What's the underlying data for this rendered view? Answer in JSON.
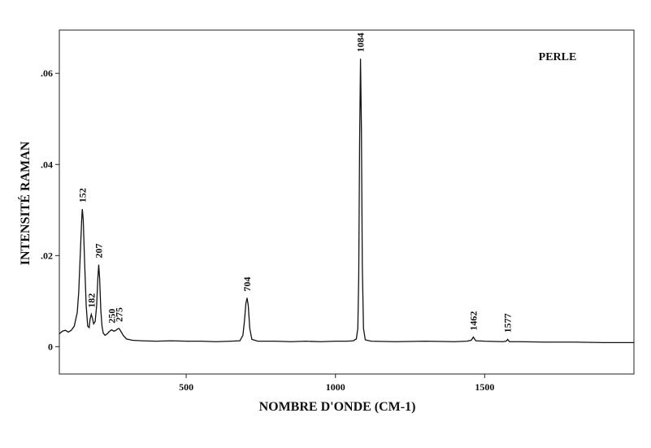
{
  "chart_data": {
    "type": "line",
    "x_label": "NOMBRE D'ONDE (CM-1)",
    "y_label": "INTENSITÉ RAMAN",
    "x": [
      75,
      85,
      95,
      105,
      115,
      125,
      135,
      140,
      145,
      150,
      152,
      155,
      160,
      165,
      170,
      175,
      178,
      182,
      186,
      190,
      195,
      200,
      204,
      207,
      210,
      214,
      218,
      222,
      228,
      235,
      242,
      250,
      258,
      265,
      270,
      275,
      280,
      290,
      300,
      320,
      350,
      400,
      450,
      500,
      550,
      600,
      650,
      680,
      690,
      695,
      700,
      704,
      708,
      713,
      720,
      740,
      800,
      850,
      900,
      950,
      1000,
      1040,
      1060,
      1070,
      1075,
      1078,
      1081,
      1084,
      1087,
      1090,
      1094,
      1100,
      1120,
      1200,
      1300,
      1400,
      1440,
      1455,
      1462,
      1470,
      1500,
      1560,
      1572,
      1577,
      1583,
      1620,
      1700,
      1800,
      1900,
      2000
    ],
    "series": [
      {
        "name": "PERLE",
        "color": "#111111",
        "values": [
          0.0028,
          0.0034,
          0.0036,
          0.0032,
          0.0036,
          0.0045,
          0.0075,
          0.012,
          0.02,
          0.028,
          0.0302,
          0.028,
          0.018,
          0.009,
          0.0045,
          0.0042,
          0.006,
          0.0071,
          0.0062,
          0.005,
          0.0055,
          0.009,
          0.015,
          0.018,
          0.015,
          0.008,
          0.0045,
          0.003,
          0.0025,
          0.0028,
          0.0033,
          0.0037,
          0.0034,
          0.0036,
          0.0039,
          0.004,
          0.0035,
          0.0024,
          0.0017,
          0.0014,
          0.0013,
          0.0012,
          0.0013,
          0.0012,
          0.0012,
          0.0011,
          0.0012,
          0.0013,
          0.0025,
          0.0055,
          0.0095,
          0.0107,
          0.009,
          0.004,
          0.0016,
          0.0012,
          0.0012,
          0.0011,
          0.0012,
          0.0011,
          0.0012,
          0.0012,
          0.0013,
          0.0017,
          0.004,
          0.015,
          0.045,
          0.0632,
          0.048,
          0.018,
          0.004,
          0.0015,
          0.0012,
          0.0011,
          0.0012,
          0.0011,
          0.0012,
          0.0014,
          0.0021,
          0.0013,
          0.0012,
          0.0011,
          0.0012,
          0.0016,
          0.0011,
          0.0011,
          0.001,
          0.001,
          0.0009,
          0.0009
        ]
      }
    ],
    "peaks": [
      152,
      182,
      207,
      250,
      275,
      704,
      1084,
      1462,
      1577
    ],
    "xlim": [
      75,
      2000
    ],
    "ylim": [
      -0.006,
      0.0695
    ],
    "xticks": [
      500,
      1000,
      1500
    ],
    "yticks": [
      0,
      {
        "value": 0.02,
        "label": ".02"
      },
      {
        "value": 0.04,
        "label": ".04"
      },
      {
        "value": 0.06,
        "label": ".06"
      }
    ]
  }
}
